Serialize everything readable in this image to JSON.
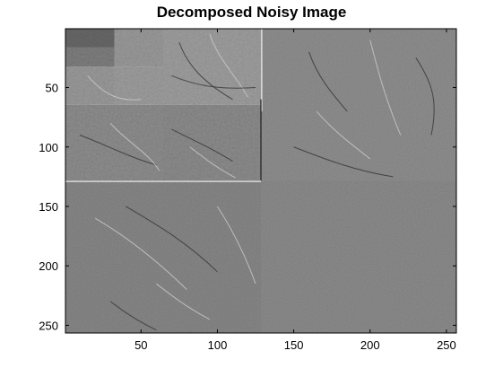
{
  "figure": {
    "title": "Decomposed Noisy Image",
    "background": "#ffffff",
    "axes_color": "#000000"
  },
  "image_axes": {
    "type": "image",
    "colormap": "gray",
    "x_ticks": [
      "50",
      "100",
      "150",
      "200",
      "250"
    ],
    "y_ticks": [
      "50",
      "100",
      "150",
      "200",
      "250"
    ],
    "x_tick_values": [
      50,
      100,
      150,
      200,
      250
    ],
    "y_tick_values": [
      50,
      100,
      150,
      200,
      250
    ],
    "xlim": [
      0.5,
      256.5
    ],
    "ylim": [
      0.5,
      256.5
    ],
    "y_reversed": true,
    "decomposition_levels": 3,
    "subband_tones": {
      "approximation": "#6b6b6b",
      "level3_detail": "#8a8a8a",
      "level2_detail": "#7c7c7c",
      "level1_detail": "#727272"
    }
  }
}
